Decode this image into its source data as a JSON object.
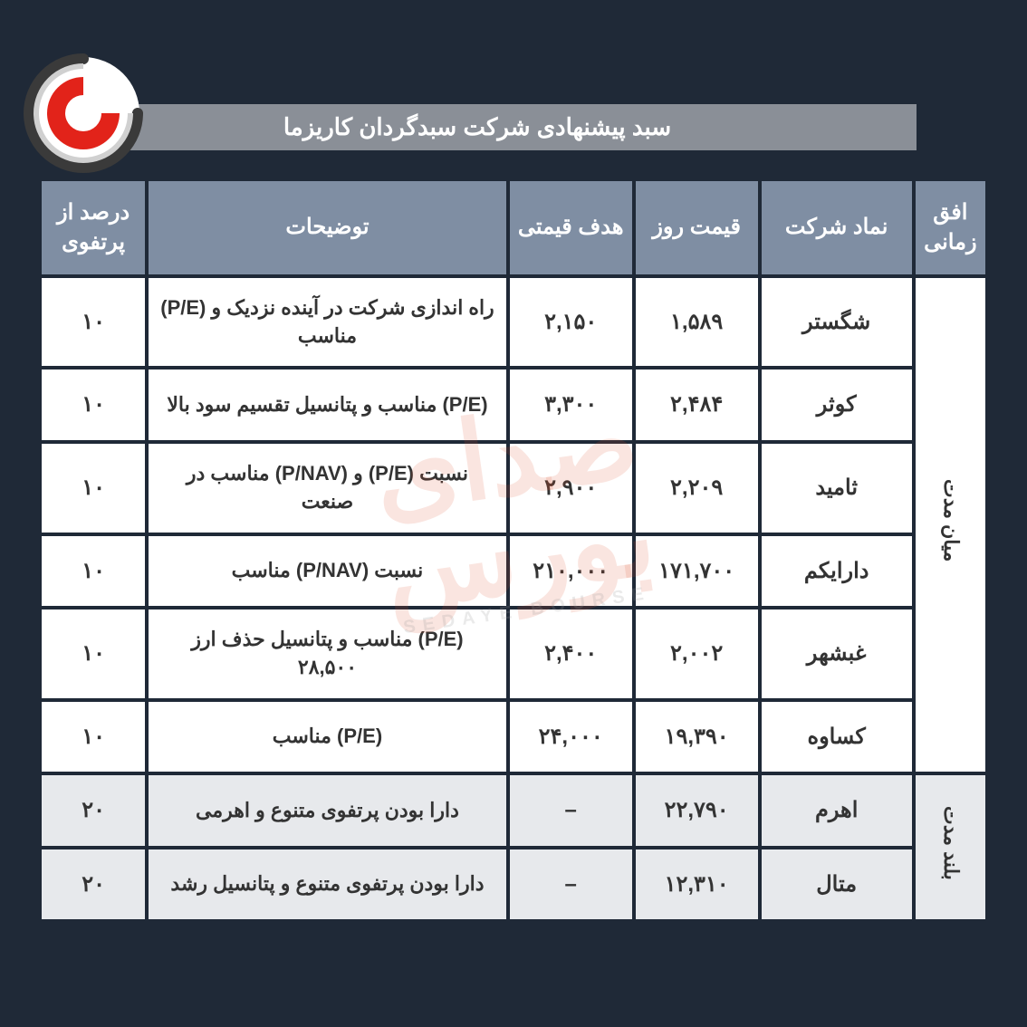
{
  "title": "سبد پیشنهادی شرکت سبدگردان کاریزما",
  "columns": {
    "horizon": "افق زمانی",
    "symbol": "نماد شرکت",
    "day_price": "قیمت روز",
    "target_price": "هدف قیمتی",
    "description": "توضیحات",
    "portfolio_pct": "درصد از پرتفوی"
  },
  "groups": [
    {
      "horizon_label": "میان مدت",
      "alt": false,
      "rows": [
        {
          "symbol": "شگستر",
          "day_price": "۱,۵۸۹",
          "target_price": "۲,۱۵۰",
          "description": "راه اندازی شرکت در آینده نزدیک و (P/E) مناسب",
          "portfolio_pct": "۱۰"
        },
        {
          "symbol": "کوثر",
          "day_price": "۲,۴۸۴",
          "target_price": "۳,۳۰۰",
          "description": "(P/E) مناسب و پتانسیل تقسیم سود بالا",
          "portfolio_pct": "۱۰"
        },
        {
          "symbol": "ثامید",
          "day_price": "۲,۲۰۹",
          "target_price": "۲,۹۰۰",
          "description": "نسبت (P/E) و (P/NAV) مناسب در صنعت",
          "portfolio_pct": "۱۰"
        },
        {
          "symbol": "دارایکم",
          "day_price": "۱۷۱,۷۰۰",
          "target_price": "۲۱۰,۰۰۰",
          "description": "نسبت (P/NAV) مناسب",
          "portfolio_pct": "۱۰"
        },
        {
          "symbol": "غبشهر",
          "day_price": "۲,۰۰۲",
          "target_price": "۲,۴۰۰",
          "description": "(P/E) مناسب و پتانسیل حذف ارز ۲۸,۵۰۰",
          "portfolio_pct": "۱۰"
        },
        {
          "symbol": "کساوه",
          "day_price": "۱۹,۳۹۰",
          "target_price": "۲۴,۰۰۰",
          "description": "(P/E) مناسب",
          "portfolio_pct": "۱۰"
        }
      ]
    },
    {
      "horizon_label": "بلند مدت",
      "alt": true,
      "rows": [
        {
          "symbol": "اهرم",
          "day_price": "۲۲,۷۹۰",
          "target_price": "–",
          "description": "دارا بودن پرتفوی متنوع و اهرمی",
          "portfolio_pct": "۲۰"
        },
        {
          "symbol": "متال",
          "day_price": "۱۲,۳۱۰",
          "target_price": "–",
          "description": "دارا بودن پرتفوی متنوع و پتانسیل رشد",
          "portfolio_pct": "۲۰"
        }
      ]
    }
  ],
  "colors": {
    "bg": "#1f2937",
    "titlebar": "#8a8f97",
    "th_bg": "#7f8ea3",
    "cell_bg": "#ffffff",
    "cell_alt_bg": "#e7e9ec",
    "text": "#333333",
    "logo_red": "#e2231a",
    "logo_gray": "#3a3a3a"
  },
  "watermark": {
    "main": "صدای بورس",
    "sub": "SEDAYE BOURSE"
  }
}
